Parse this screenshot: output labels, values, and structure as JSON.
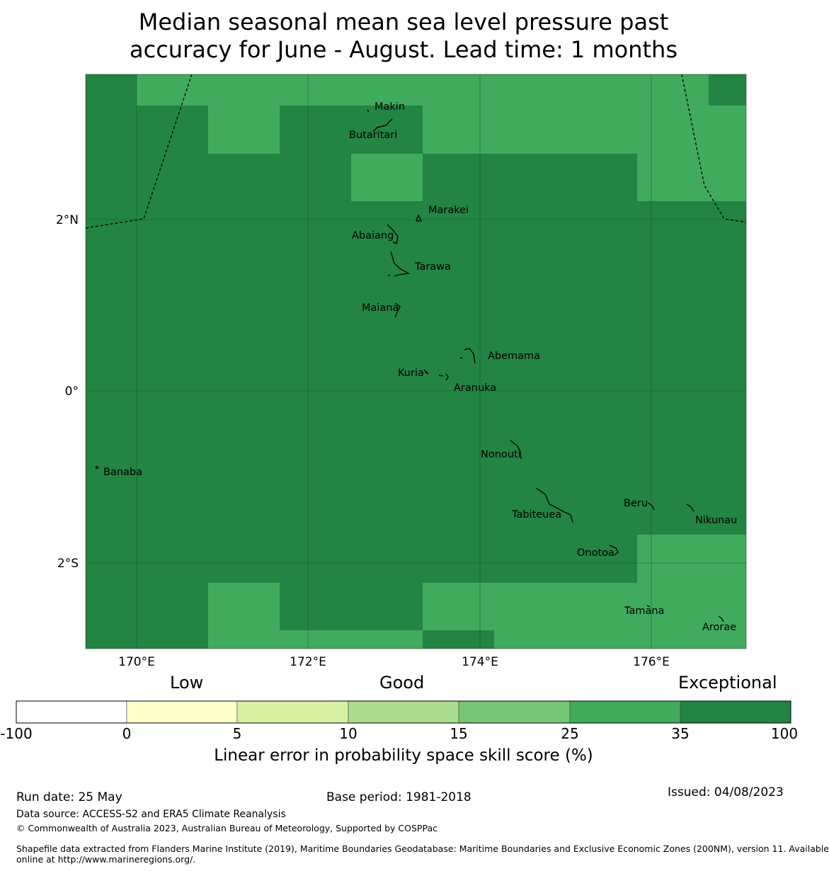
{
  "title": {
    "line1": "Median seasonal mean sea level pressure past",
    "line2": "accuracy for June - August. Lead time: 1 months"
  },
  "colors": {
    "light_green": "#41ab5d",
    "dark_green": "#238443",
    "boundary": "#000000"
  },
  "map": {
    "axis": {
      "lon_ticks": [
        "170°E",
        "172°E",
        "174°E",
        "176°E"
      ],
      "lat_ticks": [
        "2°N",
        "0°",
        "2°S"
      ]
    },
    "islands": [
      {
        "name": "Makin"
      },
      {
        "name": "Butaritari"
      },
      {
        "name": "Marakei"
      },
      {
        "name": "Abaiang"
      },
      {
        "name": "Tarawa"
      },
      {
        "name": "Maiana"
      },
      {
        "name": "Abemama"
      },
      {
        "name": "Kuria"
      },
      {
        "name": "Aranuka"
      },
      {
        "name": "Nonouti"
      },
      {
        "name": "Banaba"
      },
      {
        "name": "Beru"
      },
      {
        "name": "Nikunau"
      },
      {
        "name": "Tabiteuea"
      },
      {
        "name": "Onotoa"
      },
      {
        "name": "Tamana"
      },
      {
        "name": "Arorae"
      }
    ]
  },
  "colorbar": {
    "categories": [
      "Low",
      "Good",
      "Exceptional"
    ],
    "ticks": [
      "-100",
      "0",
      "5",
      "10",
      "15",
      "25",
      "35",
      "100"
    ],
    "colors": [
      "#ffffff",
      "#ffffcc",
      "#d9f0a3",
      "#addd8e",
      "#78c679",
      "#41ab5d",
      "#238443"
    ],
    "label": "Linear error in probability space skill score (%)"
  },
  "footer": {
    "run_date": "Run date: 25 May",
    "base_period": "Base period: 1981-2018",
    "issued": "Issued: 04/08/2023",
    "data_source": "Data source: ACCESS-S2 and ERA5 Climate Reanalysis",
    "copyright": "© Commonwealth of Australia 2023, Australian Bureau of Meteorology, Supported by COSPPac",
    "shapefile_line1": "Shapefile data extracted from Flanders Marine Institute (2019), Maritime Boundaries Geodatabase: Maritime Boundaries and Exclusive Economic Zones (200NM), version 11. Available",
    "shapefile_line2": "online at http://www.marineregions.org/."
  }
}
